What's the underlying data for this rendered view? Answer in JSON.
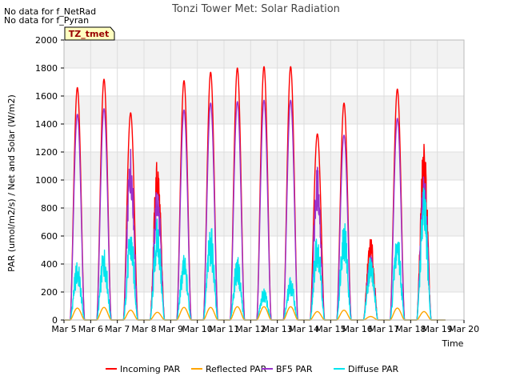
{
  "notes": [
    "No data for f_NetRad",
    "No data for f_Pyran"
  ],
  "chart_data": {
    "type": "line",
    "title": "Tonzi Tower Met: Solar Radiation",
    "xlabel": "Time",
    "ylabel": "PAR (umol/m2/s) / Net and Solar (W/m2)",
    "xlim": [
      5,
      20
    ],
    "ylim": [
      0,
      2000
    ],
    "x_ticks": [
      5,
      6,
      7,
      8,
      9,
      10,
      11,
      12,
      13,
      14,
      15,
      16,
      17,
      18,
      19,
      20
    ],
    "x_tick_labels": [
      "Mar 5",
      "Mar 6",
      "Mar 7",
      "Mar 8",
      "Mar 9",
      "Mar 10",
      "Mar 11",
      "Mar 12",
      "Mar 13",
      "Mar 14",
      "Mar 15",
      "Mar 16",
      "Mar 17",
      "Mar 18",
      "Mar 19",
      "Mar 20"
    ],
    "y_ticks": [
      0,
      200,
      400,
      600,
      800,
      1000,
      1200,
      1400,
      1600,
      1800,
      2000
    ],
    "y_tick_labels": [
      "0",
      "200",
      "400",
      "600",
      "800",
      "1000",
      "1200",
      "1400",
      "1600",
      "1800",
      "2000"
    ],
    "grid": true,
    "legend_position": "bottom-center",
    "annotation_box": "TZ_tmet",
    "day_centers": [
      5.5,
      6.5,
      7.5,
      8.5,
      9.5,
      10.5,
      11.5,
      12.5,
      13.5,
      14.5,
      15.5,
      16.5,
      17.5,
      18.5
    ],
    "series": [
      {
        "name": "Incoming PAR",
        "color": "#ff0000",
        "daily_peak": [
          1660,
          1720,
          1480,
          1170,
          1710,
          1770,
          1800,
          1810,
          1810,
          1330,
          1550,
          600,
          1650,
          1290
        ]
      },
      {
        "name": "Reflected PAR",
        "color": "#ffa500",
        "daily_peak": [
          85,
          90,
          70,
          55,
          90,
          90,
          95,
          95,
          95,
          60,
          70,
          25,
          85,
          60
        ]
      },
      {
        "name": "BF5 PAR",
        "color": "#9932cc",
        "daily_peak": [
          1470,
          1510,
          1260,
          980,
          1500,
          1550,
          1560,
          1570,
          1570,
          1110,
          1320,
          470,
          1440,
          1060
        ]
      },
      {
        "name": "Diffuse PAR",
        "color": "#00e5ee",
        "daily_peak": [
          430,
          530,
          670,
          730,
          470,
          690,
          460,
          230,
          310,
          670,
          760,
          480,
          660,
          970
        ]
      }
    ]
  }
}
